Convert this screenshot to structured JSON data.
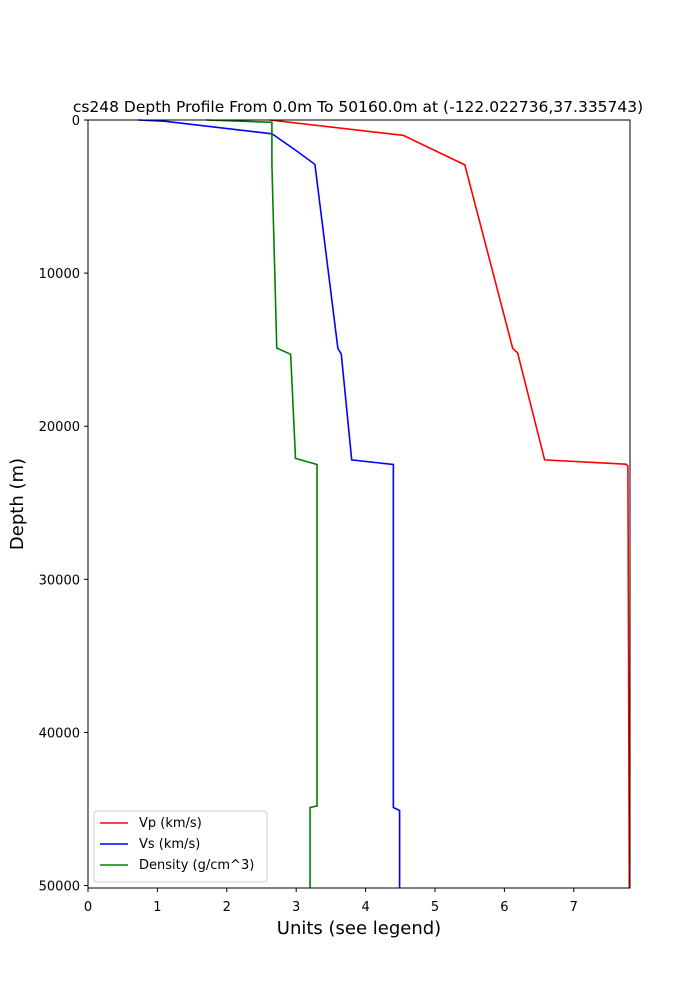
{
  "chart_data": {
    "type": "profile",
    "title": "cs248 Depth Profile From 0.0m To 50160.0m at (-122.022736,37.335743)",
    "xlabel": "Units (see legend)",
    "ylabel": "Depth (m)",
    "xlim": [
      0,
      7.81
    ],
    "ylim": [
      0,
      50160
    ],
    "y_inverted": true,
    "xticks": [
      0,
      1,
      2,
      3,
      4,
      5,
      6,
      7
    ],
    "yticks": [
      0,
      10000,
      20000,
      30000,
      40000,
      50000
    ],
    "legend": "lower left",
    "series": [
      {
        "name": "Vp (km/s)",
        "color": "#ff0000",
        "x": [
          2.62,
          4.54,
          5.43,
          6.12,
          6.19,
          6.58,
          7.75,
          7.78,
          7.8
        ],
        "y": [
          0,
          1000,
          2930,
          14920,
          15200,
          22200,
          22480,
          22600,
          50160
        ]
      },
      {
        "name": "Vs (km/s)",
        "color": "#0000ff",
        "x": [
          0.72,
          1.1,
          2.65,
          3.0,
          3.27,
          3.6,
          3.65,
          3.8,
          4.4,
          4.4,
          4.49,
          4.49
        ],
        "y": [
          0,
          80,
          900,
          2000,
          2900,
          14900,
          15300,
          22200,
          22500,
          44900,
          45100,
          50160
        ]
      },
      {
        "name": "Density (g/cm^3)",
        "color": "#008000",
        "x": [
          1.7,
          2.65,
          2.65,
          2.72,
          2.92,
          2.99,
          3.3,
          3.3,
          3.2,
          3.2
        ],
        "y": [
          0,
          150,
          2900,
          14900,
          15300,
          22100,
          22500,
          44800,
          44900,
          50160
        ]
      }
    ]
  }
}
